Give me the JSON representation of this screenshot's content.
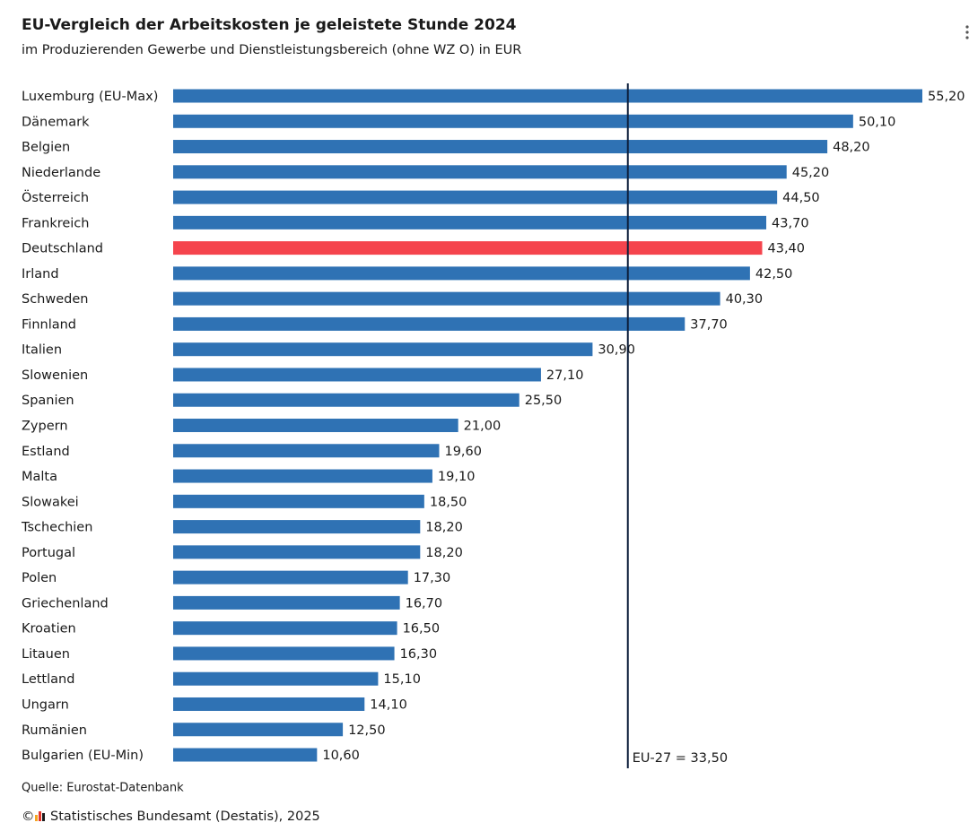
{
  "chart_data": {
    "type": "bar",
    "title": "EU-Vergleich der Arbeitskosten je geleistete Stunde 2024",
    "subtitle": "im Produzierenden Gewerbe und Dienstleistungsbereich (ohne WZ O) in EUR",
    "categories": [
      "Luxemburg (EU-Max)",
      "Dänemark",
      "Belgien",
      "Niederlande",
      "Österreich",
      "Frankreich",
      "Deutschland",
      "Irland",
      "Schweden",
      "Finnland",
      "Italien",
      "Slowenien",
      "Spanien",
      "Zypern",
      "Estland",
      "Malta",
      "Slowakei",
      "Tschechien",
      "Portugal",
      "Polen",
      "Griechenland",
      "Kroatien",
      "Litauen",
      "Lettland",
      "Ungarn",
      "Rumänien",
      "Bulgarien (EU-Min)"
    ],
    "values": [
      55.2,
      50.1,
      48.2,
      45.2,
      44.5,
      43.7,
      43.4,
      42.5,
      40.3,
      37.7,
      30.9,
      27.1,
      25.5,
      21.0,
      19.6,
      19.1,
      18.5,
      18.2,
      18.2,
      17.3,
      16.7,
      16.5,
      16.3,
      15.1,
      14.1,
      12.5,
      10.6
    ],
    "value_labels": [
      "55,20",
      "50,10",
      "48,20",
      "45,20",
      "44,50",
      "43,70",
      "43,40",
      "42,50",
      "40,30",
      "37,70",
      "30,90",
      "27,10",
      "25,50",
      "21,00",
      "19,60",
      "19,10",
      "18,50",
      "18,20",
      "18,20",
      "17,30",
      "16,70",
      "16,50",
      "16,30",
      "15,10",
      "14,10",
      "12,50",
      "10,60"
    ],
    "colors": [
      "#2f72b4",
      "#2f72b4",
      "#2f72b4",
      "#2f72b4",
      "#2f72b4",
      "#2f72b4",
      "#f5444d",
      "#2f72b4",
      "#2f72b4",
      "#2f72b4",
      "#2f72b4",
      "#2f72b4",
      "#2f72b4",
      "#2f72b4",
      "#2f72b4",
      "#2f72b4",
      "#2f72b4",
      "#2f72b4",
      "#2f72b4",
      "#2f72b4",
      "#2f72b4",
      "#2f72b4",
      "#2f72b4",
      "#2f72b4",
      "#2f72b4",
      "#2f72b4",
      "#2f72b4"
    ],
    "xlim": [
      0,
      55.2
    ],
    "reference_line": {
      "value": 33.5,
      "label": "EU-27 = 33,50",
      "color": "#0d1f3c"
    },
    "source": "Quelle: Eurostat-Datenbank",
    "copyright_symbol": "©",
    "copyright": "Statistisches Bundesamt (Destatis), 2025"
  }
}
